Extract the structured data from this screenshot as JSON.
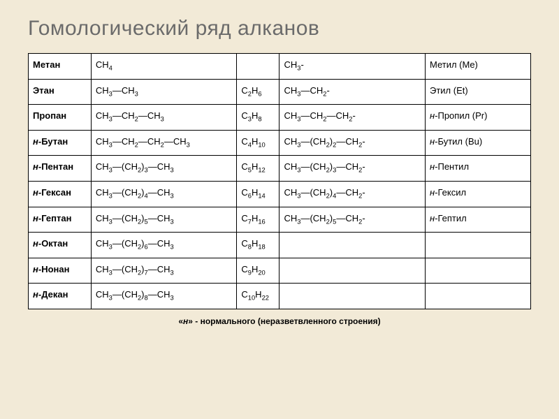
{
  "title": "Гомологический ряд алканов",
  "footnote_html": "«<span class='italic'>н</span>» - нормального (неразветвленного строения)",
  "rows": [
    {
      "name": "Метан",
      "structure_html": "CH<span class='sub'>4</span>",
      "short_html": "",
      "radical_html": "CH<span class='sub'>3</span>-",
      "radical_name": "Метил (Me)"
    },
    {
      "name": "Этан",
      "structure_html": "CH<span class='sub'>3</span>—CH<span class='sub'>3</span>",
      "short_html": "C<span class='sub'>2</span>H<span class='sub'>6</span>",
      "radical_html": "CH<span class='sub'>3</span>—CH<span class='sub'>2</span>-",
      "radical_name": "Этил (Et)"
    },
    {
      "name": "Пропан",
      "structure_html": "CH<span class='sub'>3</span>—CH<span class='sub'>2</span>—CH<span class='sub'>3</span>",
      "short_html": "C<span class='sub'>3</span>H<span class='sub'>8</span>",
      "radical_html": "CH<span class='sub'>3</span>—CH<span class='sub'>2</span>—CH<span class='sub'>2</span>-",
      "radical_name_html": "<span class='italic'>н</span>-Пропил (Pr)"
    },
    {
      "name_html": "<span class='italic'>н</span>-Бутан",
      "structure_html": "CH<span class='sub'>3</span>—CH<span class='sub'>2</span>—CH<span class='sub'>2</span>—CH<span class='sub'>3</span>",
      "short_html": "C<span class='sub'>4</span>H<span class='sub'>10</span>",
      "radical_html": "CH<span class='sub'>3</span>—(CH<span class='sub'>2</span>)<span class='sub'>2</span>—CH<span class='sub'>2</span>-",
      "radical_name_html": "<span class='italic'>н</span>-Бутил (Bu)"
    },
    {
      "name_html": "<span class='italic'>н</span>-Пентан",
      "structure_html": "CH<span class='sub'>3</span>—(CH<span class='sub'>2</span>)<span class='sub'>3</span>—CH<span class='sub'>3</span>",
      "short_html": "C<span class='sub'>5</span>H<span class='sub'>12</span>",
      "radical_html": "CH<span class='sub'>3</span>—(CH<span class='sub'>2</span>)<span class='sub'>3</span>—CH<span class='sub'>2</span>-",
      "radical_name_html": "<span class='italic'>н</span>-Пентил"
    },
    {
      "name_html": "<span class='italic'>н</span>-Гексан",
      "structure_html": "CH<span class='sub'>3</span>—(CH<span class='sub'>2</span>)<span class='sub'>4</span>—CH<span class='sub'>3</span>",
      "short_html": "C<span class='sub'>6</span>H<span class='sub'>14</span>",
      "radical_html": "CH<span class='sub'>3</span>—(CH<span class='sub'>2</span>)<span class='sub'>4</span>—CH<span class='sub'>2</span>-",
      "radical_name_html": "<span class='italic'>н</span>-Гексил"
    },
    {
      "name_html": "<span class='italic'>н</span>-Гептан",
      "structure_html": "CH<span class='sub'>3</span>—(CH<span class='sub'>2</span>)<span class='sub'>5</span>—CH<span class='sub'>3</span>",
      "short_html": "C<span class='sub'>7</span>H<span class='sub'>16</span>",
      "radical_html": "CH<span class='sub'>3</span>—(CH<span class='sub'>2</span>)<span class='sub'>5</span>—CH<span class='sub'>2</span>-",
      "radical_name_html": "<span class='italic'>н</span>-Гептил"
    },
    {
      "name_html": "<span class='italic'>н</span>-Октан",
      "structure_html": "CH<span class='sub'>3</span>—(CH<span class='sub'>2</span>)<span class='sub'>6</span>—CH<span class='sub'>3</span>",
      "short_html": "C<span class='sub'>8</span>H<span class='sub'>18</span>",
      "radical_html": "",
      "radical_name_html": ""
    },
    {
      "name_html": "<span class='italic'>н</span>-Нонан",
      "structure_html": "CH<span class='sub'>3</span>—(CH<span class='sub'>2</span>)<span class='sub'>7</span>—CH<span class='sub'>3</span>",
      "short_html": "C<span class='sub'>9</span>H<span class='sub'>20</span>",
      "radical_html": "",
      "radical_name_html": ""
    },
    {
      "name_html": "<span class='italic'>н</span>-Декан",
      "structure_html": "CH<span class='sub'>3</span>—(CH<span class='sub'>2</span>)<span class='sub'>8</span>—CH<span class='sub'>3</span>",
      "short_html": "C<span class='sub'>10</span>H<span class='sub'>22</span>",
      "radical_html": "",
      "radical_name_html": ""
    }
  ],
  "style": {
    "background": "#f2ead7",
    "table_bg": "#ffffff",
    "border_color": "#000000",
    "title_color": "#6b6b6b",
    "title_fontsize": 30,
    "cell_fontsize": 13
  }
}
